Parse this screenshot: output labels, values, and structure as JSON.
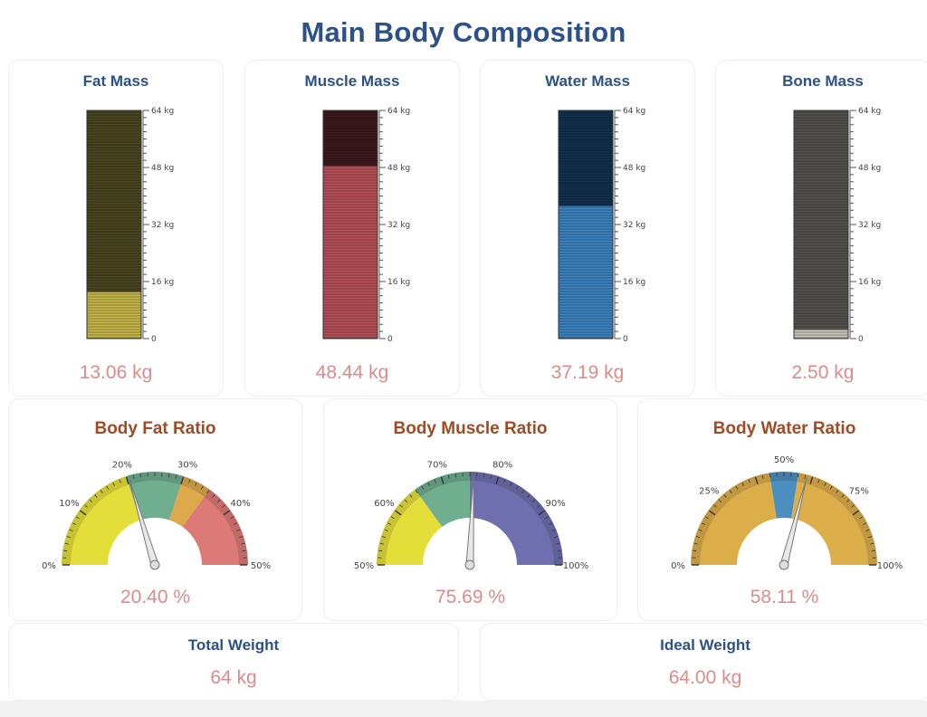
{
  "page_title": "Main Body Composition",
  "mass_cards": [
    {
      "title": "Fat Mass",
      "value_text": "13.06 kg",
      "value": 13.06,
      "max": 64,
      "empty_color": "#4a4622",
      "fill_color": "#c9b94a"
    },
    {
      "title": "Muscle Mass",
      "value_text": "48.44 kg",
      "value": 48.44,
      "max": 64,
      "empty_color": "#3e1a1d",
      "fill_color": "#b9505a"
    },
    {
      "title": "Water Mass",
      "value_text": "37.19 kg",
      "value": 37.19,
      "max": 64,
      "empty_color": "#13304f",
      "fill_color": "#3d86c2"
    },
    {
      "title": "Bone Mass",
      "value_text": "2.50 kg",
      "value": 2.5,
      "max": 64,
      "empty_color": "#55544f",
      "fill_color": "#c9c6b8"
    }
  ],
  "mass_scale_labels": [
    "64 kg",
    "48 kg",
    "32 kg",
    "16 kg",
    "0"
  ],
  "ratio_cards": [
    {
      "title": "Body Fat Ratio",
      "value_text": "20.40 %",
      "value": 20.4,
      "min": 0,
      "max": 50,
      "tick_labels": [
        "0%",
        "10%",
        "20%",
        "30%",
        "40%",
        "50%"
      ],
      "bands": [
        {
          "from": 0,
          "to": 20,
          "color": "#e4de3a"
        },
        {
          "from": 20,
          "to": 30,
          "color": "#6fae8f"
        },
        {
          "from": 30,
          "to": 35,
          "color": "#dda94a"
        },
        {
          "from": 35,
          "to": 50,
          "color": "#dc7a78"
        }
      ]
    },
    {
      "title": "Body Muscle Ratio",
      "value_text": "75.69 %",
      "value": 75.69,
      "min": 50,
      "max": 100,
      "tick_labels": [
        "50%",
        "60%",
        "70%",
        "80%",
        "90%",
        "100%"
      ],
      "bands": [
        {
          "from": 50,
          "to": 65,
          "color": "#e4de3a"
        },
        {
          "from": 65,
          "to": 75,
          "color": "#6fae8f"
        },
        {
          "from": 75,
          "to": 100,
          "color": "#6f6fb0"
        }
      ]
    },
    {
      "title": "Body Water Ratio",
      "value_text": "58.11 %",
      "value": 58.11,
      "min": 0,
      "max": 100,
      "tick_labels": [
        "0%",
        "25%",
        "50%",
        "75%",
        "100%"
      ],
      "bands": [
        {
          "from": 0,
          "to": 45,
          "color": "#dcae4a"
        },
        {
          "from": 45,
          "to": 55,
          "color": "#4a8fc0"
        },
        {
          "from": 55,
          "to": 100,
          "color": "#dcae4a"
        }
      ]
    }
  ],
  "weight_cards": [
    {
      "title": "Total Weight",
      "value_text": "64 kg"
    },
    {
      "title": "Ideal Weight",
      "value_text": "64.00 kg"
    }
  ]
}
